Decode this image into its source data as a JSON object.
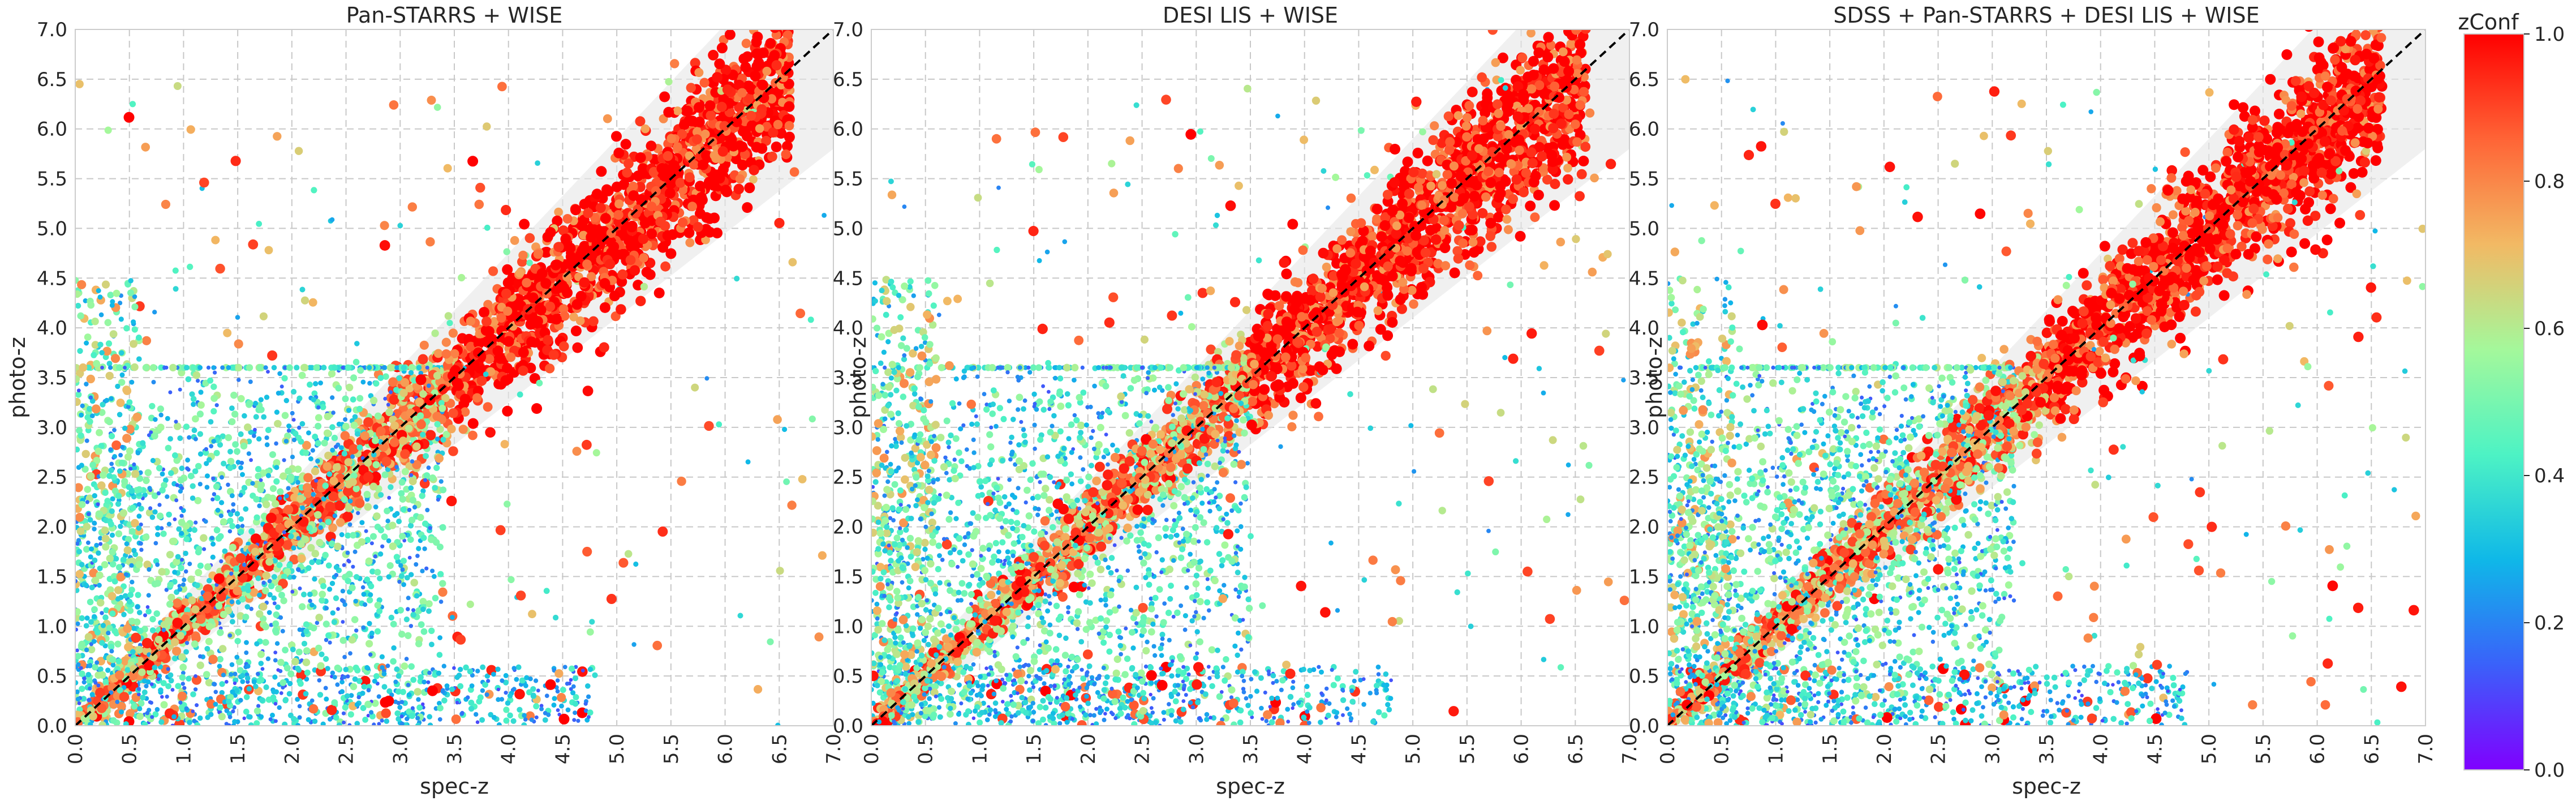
{
  "chart_data": [
    {
      "type": "scatter",
      "title": "Pan-STARRS + WISE",
      "xlabel": "spec-z",
      "ylabel": "photo-z",
      "xlim": [
        0.0,
        7.0
      ],
      "ylim": [
        0.0,
        7.0
      ],
      "xticks": [
        "0.0",
        "0.5",
        "1.0",
        "1.5",
        "2.0",
        "2.5",
        "3.0",
        "3.5",
        "4.0",
        "4.5",
        "5.0",
        "5.5",
        "6.0",
        "6.5",
        "7.0"
      ],
      "yticks": [
        "0.0",
        "0.5",
        "1.0",
        "1.5",
        "2.0",
        "2.5",
        "3.0",
        "3.5",
        "4.0",
        "4.5",
        "5.0",
        "5.5",
        "6.0",
        "6.5",
        "7.0"
      ],
      "grid": true,
      "one_to_one_line": true,
      "tolerance_band": true,
      "color_by": "zConf",
      "dense_region_zmax": 3.4,
      "seed": 11
    },
    {
      "type": "scatter",
      "title": "DESI LIS + WISE",
      "xlabel": "spec-z",
      "ylabel": "photo-z",
      "xlim": [
        0.0,
        7.0
      ],
      "ylim": [
        0.0,
        7.0
      ],
      "xticks": [
        "0.0",
        "0.5",
        "1.0",
        "1.5",
        "2.0",
        "2.5",
        "3.0",
        "3.5",
        "4.0",
        "4.5",
        "5.0",
        "5.5",
        "6.0",
        "6.5",
        "7.0"
      ],
      "yticks": [
        "0.0",
        "0.5",
        "1.0",
        "1.5",
        "2.0",
        "2.5",
        "3.0",
        "3.5",
        "4.0",
        "4.5",
        "5.0",
        "5.5",
        "6.0",
        "6.5",
        "7.0"
      ],
      "grid": true,
      "one_to_one_line": true,
      "tolerance_band": true,
      "color_by": "zConf",
      "dense_region_zmax": 3.5,
      "seed": 23
    },
    {
      "type": "scatter",
      "title": "SDSS + Pan-STARRS + DESI LIS + WISE",
      "xlabel": "spec-z",
      "ylabel": "photo-z",
      "xlim": [
        0.0,
        7.0
      ],
      "ylim": [
        0.0,
        7.0
      ],
      "xticks": [
        "0.0",
        "0.5",
        "1.0",
        "1.5",
        "2.0",
        "2.5",
        "3.0",
        "3.5",
        "4.0",
        "4.5",
        "5.0",
        "5.5",
        "6.0",
        "6.5",
        "7.0"
      ],
      "yticks": [
        "0.0",
        "0.5",
        "1.0",
        "1.5",
        "2.0",
        "2.5",
        "3.0",
        "3.5",
        "4.0",
        "4.5",
        "5.0",
        "5.5",
        "6.0",
        "6.5",
        "7.0"
      ],
      "grid": true,
      "one_to_one_line": true,
      "tolerance_band": true,
      "color_by": "zConf",
      "dense_region_zmax": 3.2,
      "seed": 37
    }
  ],
  "colorbar": {
    "label": "zConf",
    "range": [
      0.0,
      1.0
    ],
    "ticks": [
      "0.0",
      "0.2",
      "0.4",
      "0.6",
      "0.8",
      "1.0"
    ],
    "colormap": "rainbow",
    "stops": [
      "#8000ff",
      "#3a61fa",
      "#0fb8e8",
      "#4df3c4",
      "#a4f89b",
      "#f2b964",
      "#ff6436",
      "#ff0000"
    ]
  },
  "colors": {
    "one_to_one_line": "#000000",
    "band": "#e6e6e6",
    "grid": "#c8c8c8"
  }
}
